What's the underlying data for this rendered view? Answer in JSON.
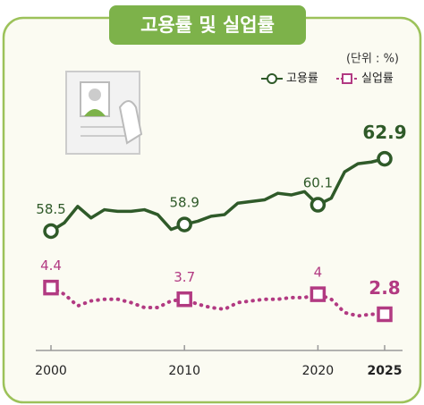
{
  "chart_data": {
    "type": "line",
    "title": "고용률 및 실업률",
    "unit_note": "(단위 : %)",
    "x": [
      2000,
      2001,
      2002,
      2003,
      2004,
      2005,
      2006,
      2007,
      2008,
      2009,
      2010,
      2011,
      2012,
      2013,
      2014,
      2015,
      2016,
      2017,
      2018,
      2019,
      2020,
      2021,
      2022,
      2023,
      2024,
      2025
    ],
    "xlim": [
      2000,
      2025
    ],
    "xticks": [
      2000,
      2010,
      2020,
      2025
    ],
    "ylim": [
      50.8,
      64.4
    ],
    "y2lim": [
      0.2,
      13.6
    ],
    "series": [
      {
        "name": "고용률",
        "color": "#2f5a29",
        "values": [
          58.5,
          59.0,
          60.0,
          59.3,
          59.8,
          59.7,
          59.7,
          59.8,
          59.5,
          58.6,
          58.9,
          59.1,
          59.4,
          59.5,
          60.2,
          60.3,
          60.4,
          60.8,
          60.7,
          60.9,
          60.1,
          60.5,
          62.1,
          62.6,
          62.7,
          62.9
        ]
      },
      {
        "name": "실업률",
        "color": "#b23a82",
        "axis": "y2",
        "values": [
          4.4,
          4.0,
          3.3,
          3.6,
          3.7,
          3.7,
          3.5,
          3.2,
          3.2,
          3.6,
          3.7,
          3.4,
          3.2,
          3.1,
          3.5,
          3.6,
          3.7,
          3.7,
          3.8,
          3.8,
          4.0,
          3.7,
          2.9,
          2.7,
          2.8,
          2.8
        ]
      }
    ]
  }
}
